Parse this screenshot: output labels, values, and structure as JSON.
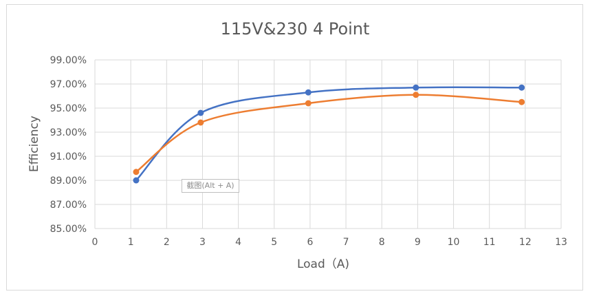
{
  "chart_data": {
    "type": "scatter",
    "title": "115V&230 4 Point",
    "xlabel": "Load（A)",
    "ylabel": "Efficiency",
    "xlim": [
      0,
      13
    ],
    "ylim": [
      85.0,
      99.0
    ],
    "x_ticks": [
      "0",
      "1",
      "2",
      "3",
      "4",
      "5",
      "6",
      "7",
      "8",
      "9",
      "10",
      "11",
      "12",
      "13"
    ],
    "y_ticks": [
      "85.00%",
      "87.00%",
      "89.00%",
      "91.00%",
      "93.00%",
      "95.00%",
      "97.00%",
      "99.00%"
    ],
    "grid": true,
    "smooth_lines": true,
    "series": [
      {
        "color": "#4472c4",
        "points": [
          {
            "x": 1.15,
            "y": 89.0
          },
          {
            "x": 2.95,
            "y": 94.6
          },
          {
            "x": 5.95,
            "y": 96.3
          },
          {
            "x": 8.95,
            "y": 96.7
          },
          {
            "x": 11.9,
            "y": 96.7
          }
        ]
      },
      {
        "color": "#ed7d31",
        "points": [
          {
            "x": 1.15,
            "y": 89.7
          },
          {
            "x": 2.95,
            "y": 93.8
          },
          {
            "x": 5.95,
            "y": 95.4
          },
          {
            "x": 8.95,
            "y": 96.1
          },
          {
            "x": 11.9,
            "y": 95.5
          }
        ]
      }
    ]
  },
  "overlay": {
    "tooltip_text": "截图(Alt + A)"
  }
}
